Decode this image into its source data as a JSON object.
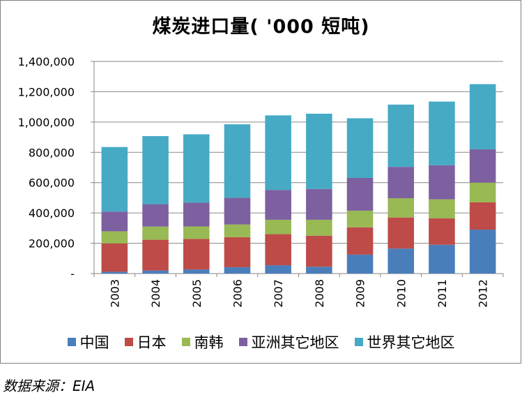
{
  "chart_data": {
    "type": "bar",
    "stacked": true,
    "title": "煤炭进口量( '000 短吨)",
    "categories": [
      "2003",
      "2004",
      "2005",
      "2006",
      "2007",
      "2008",
      "2009",
      "2010",
      "2011",
      "2012"
    ],
    "y_ticks": [
      "-",
      "200,000",
      "400,000",
      "600,000",
      "800,000",
      "1,000,000",
      "1,200,000",
      "1,400,000"
    ],
    "ylim": [
      0,
      1400000
    ],
    "grid": true,
    "legend_position": "bottom",
    "series": [
      {
        "name": "中国",
        "color": "#4a7ebb",
        "values": [
          12000,
          20000,
          27000,
          42000,
          55000,
          45000,
          125000,
          165000,
          190000,
          290000
        ]
      },
      {
        "name": "日本",
        "color": "#be4b48",
        "values": [
          187000,
          203000,
          202000,
          198000,
          205000,
          205000,
          180000,
          205000,
          175000,
          180000
        ]
      },
      {
        "name": "南韩",
        "color": "#98b954",
        "values": [
          80000,
          87000,
          82000,
          84000,
          95000,
          105000,
          110000,
          127000,
          125000,
          130000
        ]
      },
      {
        "name": "亚洲其它地区",
        "color": "#7d60a0",
        "values": [
          130000,
          148000,
          157000,
          176000,
          197000,
          203000,
          216000,
          207000,
          225000,
          220000
        ]
      },
      {
        "name": "世界其它地区",
        "color": "#46aac5",
        "values": [
          426000,
          449000,
          451000,
          485000,
          492000,
          497000,
          394000,
          411000,
          420000,
          430000
        ]
      }
    ]
  },
  "source_note": "数据来源：EIA"
}
